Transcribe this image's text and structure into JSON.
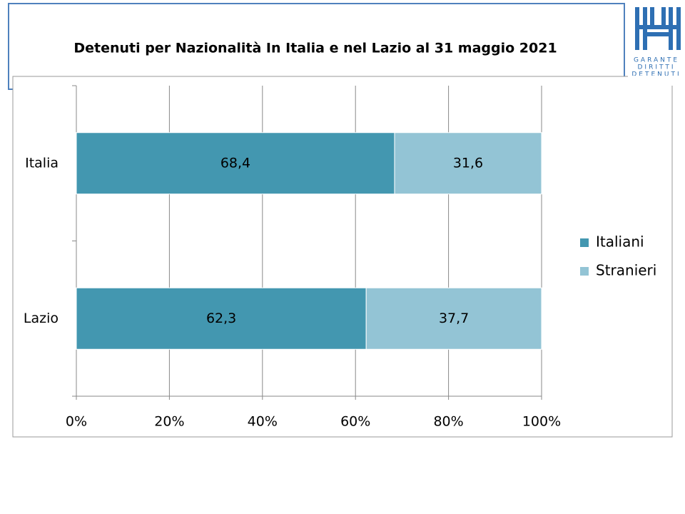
{
  "logo": {
    "lines": [
      "GARANTE",
      "DIRITTI",
      "DETENUTI"
    ]
  },
  "chart_data": {
    "type": "stacked-barh",
    "title": "Detenuti per Nazionalità In Italia e nel Lazio al 31 maggio 2021",
    "categories": [
      "Italia",
      "Lazio"
    ],
    "series": [
      {
        "name": "Italiani",
        "color": "#4397b0",
        "values": [
          68.4,
          62.3
        ],
        "value_labels": [
          "68,4",
          "62,3"
        ]
      },
      {
        "name": "Stranieri",
        "color": "#93c4d5",
        "values": [
          31.6,
          37.7
        ],
        "value_labels": [
          "31,6",
          "37,7"
        ]
      }
    ],
    "xlim": [
      0,
      100
    ],
    "xticks": [
      {
        "value": 0,
        "label": "0%"
      },
      {
        "value": 20,
        "label": "20%"
      },
      {
        "value": 40,
        "label": "40%"
      },
      {
        "value": 60,
        "label": "60%"
      },
      {
        "value": 80,
        "label": "80%"
      },
      {
        "value": 100,
        "label": "100%"
      }
    ],
    "grid": true,
    "legend": "right"
  }
}
